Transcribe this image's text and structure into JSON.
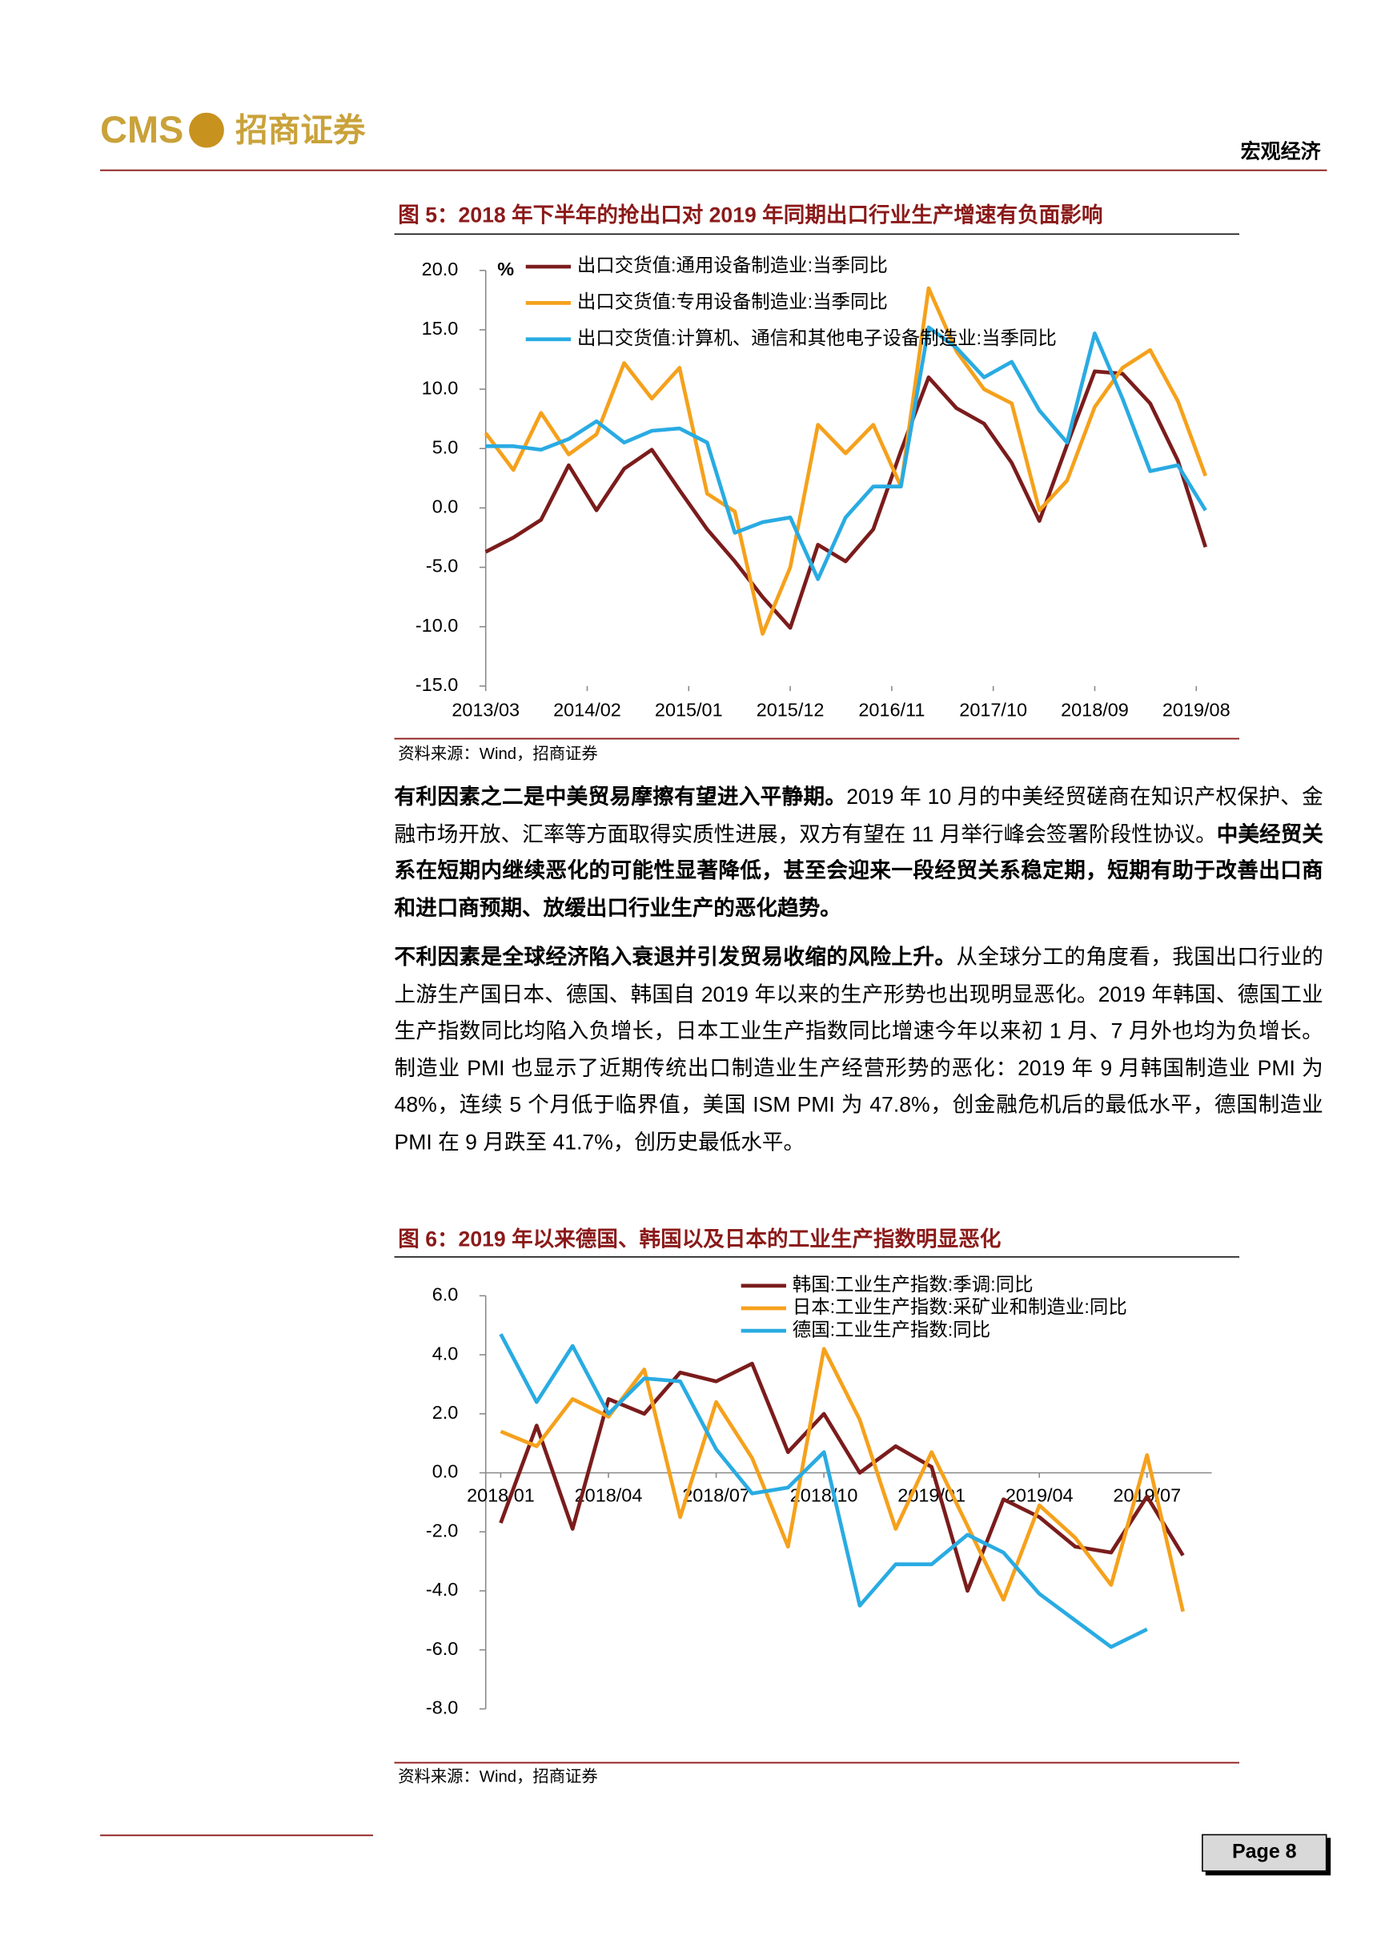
{
  "header": {
    "logo": "CMS",
    "company": "招商证券",
    "section": "宏观经济"
  },
  "chart_data": [
    {
      "type": "line",
      "title": "图 5：2018 年下半年的抢出口对 2019 年同期出口行业生产增速有负面影响",
      "unit": "%",
      "source": "资料来源：Wind，招商证券",
      "x": [
        "2013/03",
        "2013/06",
        "2013/09",
        "2013/12",
        "2014/03",
        "2014/06",
        "2014/09",
        "2014/12",
        "2015/03",
        "2015/06",
        "2015/09",
        "2015/12",
        "2016/03",
        "2016/06",
        "2016/09",
        "2016/12",
        "2017/03",
        "2017/06",
        "2017/09",
        "2017/12",
        "2018/03",
        "2018/06",
        "2018/09",
        "2018/12",
        "2019/03",
        "2019/06",
        "2019/09"
      ],
      "xticks": [
        "2013/03",
        "2014/02",
        "2015/01",
        "2015/12",
        "2016/11",
        "2017/10",
        "2018/09",
        "2019/08"
      ],
      "ylim": [
        -15,
        20
      ],
      "yticks": [
        {
          "value": -15,
          "label": "-15.0"
        },
        {
          "value": -10,
          "label": "-10.0"
        },
        {
          "value": -5,
          "label": "-5.0"
        },
        {
          "value": 0,
          "label": "0.0"
        },
        {
          "value": 5,
          "label": "5.0"
        },
        {
          "value": 10,
          "label": "10.0"
        },
        {
          "value": 15,
          "label": "15.0"
        },
        {
          "value": 20,
          "label": "20.0"
        }
      ],
      "legend": "top-left",
      "series": [
        {
          "name": "出口交货值:通用设备制造业:当季同比",
          "color": "#7b1c1c",
          "values": [
            -3.7,
            -2.5,
            -1,
            3.6,
            -0.2,
            3.3,
            4.9,
            1.5,
            -1.8,
            -4.5,
            -7.5,
            -10.1,
            -3.1,
            -4.5,
            -1.8,
            4.8,
            11,
            8.4,
            7.1,
            3.8,
            -1.1,
            5.3,
            11.5,
            11.3,
            8.8,
            4,
            -3.3
          ]
        },
        {
          "name": "出口交货值:专用设备制造业:当季同比",
          "color": "#f5a11c",
          "values": [
            6.3,
            3.2,
            8,
            4.5,
            6.2,
            12.2,
            9.2,
            11.8,
            1.2,
            -0.3,
            -10.6,
            -5,
            7,
            4.6,
            7,
            1.8,
            18.5,
            13.2,
            10,
            8.8,
            -0.2,
            2.3,
            8.5,
            11.8,
            13.3,
            9,
            2.7
          ]
        },
        {
          "name": "出口交货值:计算机、通信和其他电子设备制造业:当季同比",
          "color": "#29abe2",
          "values": [
            5.2,
            5.2,
            4.9,
            5.8,
            7.3,
            5.5,
            6.5,
            6.7,
            5.5,
            -2.1,
            -1.2,
            -0.8,
            -6,
            -0.8,
            1.8,
            1.8,
            15.2,
            13.5,
            11,
            12.3,
            8.2,
            5.5,
            14.7,
            9.2,
            3.1,
            3.6,
            -0.2
          ]
        }
      ]
    },
    {
      "type": "line",
      "title": "图 6：2019 年以来德国、韩国以及日本的工业生产指数明显恶化",
      "source": "资料来源：Wind，招商证券",
      "x": [
        "2018/01",
        "2018/02",
        "2018/03",
        "2018/04",
        "2018/05",
        "2018/06",
        "2018/07",
        "2018/08",
        "2018/09",
        "2018/10",
        "2018/11",
        "2018/12",
        "2019/01",
        "2019/02",
        "2019/03",
        "2019/04",
        "2019/05",
        "2019/06",
        "2019/07",
        "2019/08"
      ],
      "xticks": [
        "2018/01",
        "2018/04",
        "2018/07",
        "2018/10",
        "2019/01",
        "2019/04",
        "2019/07"
      ],
      "ylim": [
        -8,
        6
      ],
      "yticks": [
        {
          "value": -8,
          "label": "-8.0"
        },
        {
          "value": -6,
          "label": "-6.0"
        },
        {
          "value": -4,
          "label": "-4.0"
        },
        {
          "value": -2,
          "label": "-2.0"
        },
        {
          "value": 0,
          "label": "0.0"
        },
        {
          "value": 2,
          "label": "2.0"
        },
        {
          "value": 4,
          "label": "4.0"
        },
        {
          "value": 6,
          "label": "6.0"
        }
      ],
      "legend": "top-center",
      "series": [
        {
          "name": "韩国:工业生产指数:季调:同比",
          "color": "#7b1c1c",
          "values": [
            -1.7,
            1.6,
            -1.9,
            2.5,
            2,
            3.4,
            3.1,
            3.7,
            0.7,
            2,
            0,
            0.9,
            0.2,
            -4,
            -0.9,
            -1.5,
            -2.5,
            -2.7,
            -0.8,
            -2.8
          ]
        },
        {
          "name": "日本:工业生产指数:采矿业和制造业:同比",
          "color": "#f5a11c",
          "values": [
            1.4,
            0.9,
            2.5,
            1.9,
            3.5,
            -1.5,
            2.4,
            0.5,
            -2.5,
            4.2,
            1.8,
            -1.9,
            0.7,
            -1.8,
            -4.3,
            -1.1,
            -2.2,
            -3.8,
            0.6,
            -4.7
          ]
        },
        {
          "name": "德国:工业生产指数:同比",
          "color": "#29abe2",
          "values": [
            4.7,
            2.4,
            4.3,
            2,
            3.2,
            3.1,
            0.8,
            -0.7,
            -0.5,
            0.7,
            -4.5,
            -3.1,
            -3.1,
            -2.1,
            -2.7,
            -4.1,
            -5,
            -5.9,
            -5.3,
            null
          ]
        }
      ]
    }
  ],
  "paragraphs": [
    {
      "runs": [
        {
          "text": "有利因素之二是中美贸易摩擦有望进入平静期。",
          "bold": true
        },
        {
          "text": "2019 年 10 月的中美经贸磋商在知识产权保护、金融市场开放、汇率等方面取得实质性进展，双方有望在 11 月举行峰会签署阶段性协议。",
          "bold": false
        },
        {
          "text": "中美经贸关系在短期内继续恶化的可能性显著降低，甚至会迎来一段经贸关系稳定期，短期有助于改善出口商和进口商预期、放缓出口行业生产的恶化趋势。",
          "bold": true
        }
      ]
    },
    {
      "runs": [
        {
          "text": "不利因素是全球经济陷入衰退并引发贸易收缩的风险上升。",
          "bold": true
        },
        {
          "text": "从全球分工的角度看，我国出口行业的上游生产国日本、德国、韩国自 2019 年以来的生产形势也出现明显恶化。2019 年韩国、德国工业生产指数同比均陷入负增长，日本工业生产指数同比增速今年以来初 1 月、7 月外也均为负增长。制造业 PMI 也显示了近期传统出口制造业生产经营形势的恶化：2019 年 9 月韩国制造业 PMI 为 48%，连续 5 个月低于临界值，美国 ISM PMI 为 47.8%，创金融危机后的最低水平，德国制造业 PMI 在 9 月跌至 41.7%，创历史最低水平。",
          "bold": false
        }
      ]
    }
  ],
  "footer": {
    "page": "Page 8"
  }
}
